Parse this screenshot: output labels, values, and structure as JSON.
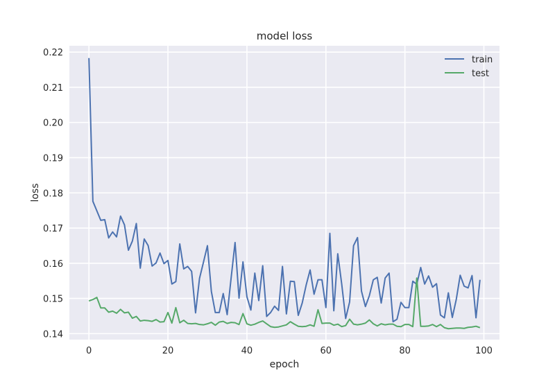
{
  "chart_data": {
    "type": "line",
    "title": "model loss",
    "xlabel": "epoch",
    "ylabel": "loss",
    "xlim": [
      -4.95,
      103.95
    ],
    "ylim": [
      0.1383,
      0.2218
    ],
    "xticks": [
      0,
      20,
      40,
      60,
      80,
      100
    ],
    "yticks": [
      0.14,
      0.15,
      0.16,
      0.17,
      0.18,
      0.19,
      0.2,
      0.21,
      0.22
    ],
    "ytick_labels": [
      "0.14",
      "0.15",
      "0.16",
      "0.17",
      "0.18",
      "0.19",
      "0.20",
      "0.21",
      "0.22"
    ],
    "grid": true,
    "legend_position": "top-right",
    "style": {
      "background": "#eaeaf2",
      "grid_color": "#ffffff"
    },
    "series": [
      {
        "name": "train",
        "color": "#4c72b0",
        "values": [
          0.2183,
          0.1776,
          0.1749,
          0.1722,
          0.1724,
          0.1672,
          0.1689,
          0.1675,
          0.1734,
          0.1709,
          0.1637,
          0.1663,
          0.1713,
          0.1586,
          0.1669,
          0.165,
          0.1592,
          0.1601,
          0.1629,
          0.1599,
          0.1608,
          0.1541,
          0.1548,
          0.1655,
          0.1584,
          0.1591,
          0.1577,
          0.1459,
          0.1557,
          0.1603,
          0.165,
          0.152,
          0.146,
          0.146,
          0.1514,
          0.1454,
          0.1558,
          0.1659,
          0.1501,
          0.1604,
          0.1505,
          0.1467,
          0.1572,
          0.1494,
          0.1593,
          0.1449,
          0.146,
          0.1478,
          0.1466,
          0.1591,
          0.1456,
          0.1549,
          0.1548,
          0.1452,
          0.1487,
          0.1538,
          0.1581,
          0.1512,
          0.1553,
          0.1553,
          0.1474,
          0.1685,
          0.1465,
          0.1627,
          0.1541,
          0.1443,
          0.149,
          0.165,
          0.1673,
          0.1521,
          0.1477,
          0.1508,
          0.1553,
          0.156,
          0.1487,
          0.1558,
          0.1572,
          0.1434,
          0.1441,
          0.1489,
          0.1474,
          0.1474,
          0.1549,
          0.154,
          0.1588,
          0.1541,
          0.1564,
          0.1532,
          0.1542,
          0.1453,
          0.1445,
          0.1516,
          0.1446,
          0.1497,
          0.1566,
          0.1535,
          0.153,
          0.1565,
          0.1445,
          0.1553
        ]
      },
      {
        "name": "test",
        "color": "#55a868",
        "values": [
          0.1493,
          0.1497,
          0.1503,
          0.1473,
          0.1473,
          0.1461,
          0.1464,
          0.1458,
          0.1469,
          0.1459,
          0.1461,
          0.1444,
          0.1449,
          0.1436,
          0.1438,
          0.1437,
          0.1435,
          0.144,
          0.1433,
          0.1434,
          0.146,
          0.143,
          0.1474,
          0.1431,
          0.1438,
          0.1429,
          0.1428,
          0.1429,
          0.1426,
          0.1425,
          0.1428,
          0.1432,
          0.1424,
          0.1433,
          0.1435,
          0.1429,
          0.1432,
          0.1431,
          0.1426,
          0.1457,
          0.1428,
          0.1424,
          0.1427,
          0.1432,
          0.1436,
          0.1428,
          0.142,
          0.1418,
          0.1419,
          0.1422,
          0.1425,
          0.1434,
          0.1427,
          0.1421,
          0.142,
          0.1421,
          0.1425,
          0.1421,
          0.1468,
          0.1429,
          0.143,
          0.143,
          0.1424,
          0.1427,
          0.142,
          0.1423,
          0.1441,
          0.1427,
          0.1425,
          0.1427,
          0.143,
          0.1439,
          0.1428,
          0.1422,
          0.1428,
          0.1425,
          0.1427,
          0.1427,
          0.1421,
          0.142,
          0.1426,
          0.1426,
          0.142,
          0.1558,
          0.1421,
          0.1421,
          0.1422,
          0.1426,
          0.142,
          0.1426,
          0.1417,
          0.1414,
          0.1415,
          0.1416,
          0.1416,
          0.1415,
          0.1418,
          0.1419,
          0.1421,
          0.1417
        ]
      }
    ]
  }
}
